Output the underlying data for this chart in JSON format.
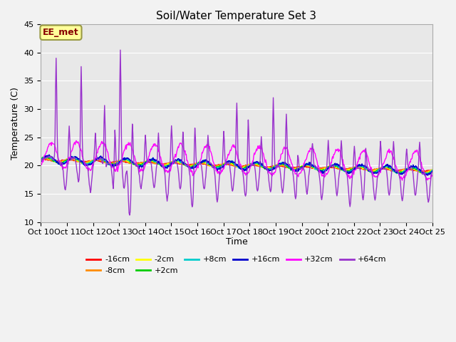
{
  "title": "Soil/Water Temperature Set 3",
  "xlabel": "Time",
  "ylabel": "Temperature (C)",
  "ylim": [
    10,
    45
  ],
  "yticks": [
    10,
    15,
    20,
    25,
    30,
    35,
    40,
    45
  ],
  "background_color": "#f2f2f2",
  "plot_bg_color": "#e8e8e8",
  "annotation_text": "EE_met",
  "annotation_bg": "#ffff99",
  "annotation_border": "#999944",
  "series": [
    {
      "label": "-16cm",
      "color": "#ff0000"
    },
    {
      "label": "-8cm",
      "color": "#ff8c00"
    },
    {
      "label": "-2cm",
      "color": "#ffff00"
    },
    {
      "label": "+2cm",
      "color": "#00cc00"
    },
    {
      "label": "+8cm",
      "color": "#00cccc"
    },
    {
      "label": "+16cm",
      "color": "#0000cc"
    },
    {
      "label": "+32cm",
      "color": "#ff00ff"
    },
    {
      "label": "+64cm",
      "color": "#9933cc"
    }
  ],
  "xtick_labels": [
    "Oct 10",
    "Oct 11",
    "Oct 12",
    "Oct 13",
    "Oct 14",
    "Oct 15",
    "Oct 16",
    "Oct 17",
    "Oct 18",
    "Oct 19",
    "Oct 20",
    "Oct 21",
    "Oct 22",
    "Oct 23",
    "Oct 24",
    "Oct 25"
  ],
  "n_points": 720,
  "figsize": [
    6.4,
    4.8
  ],
  "dpi": 100
}
